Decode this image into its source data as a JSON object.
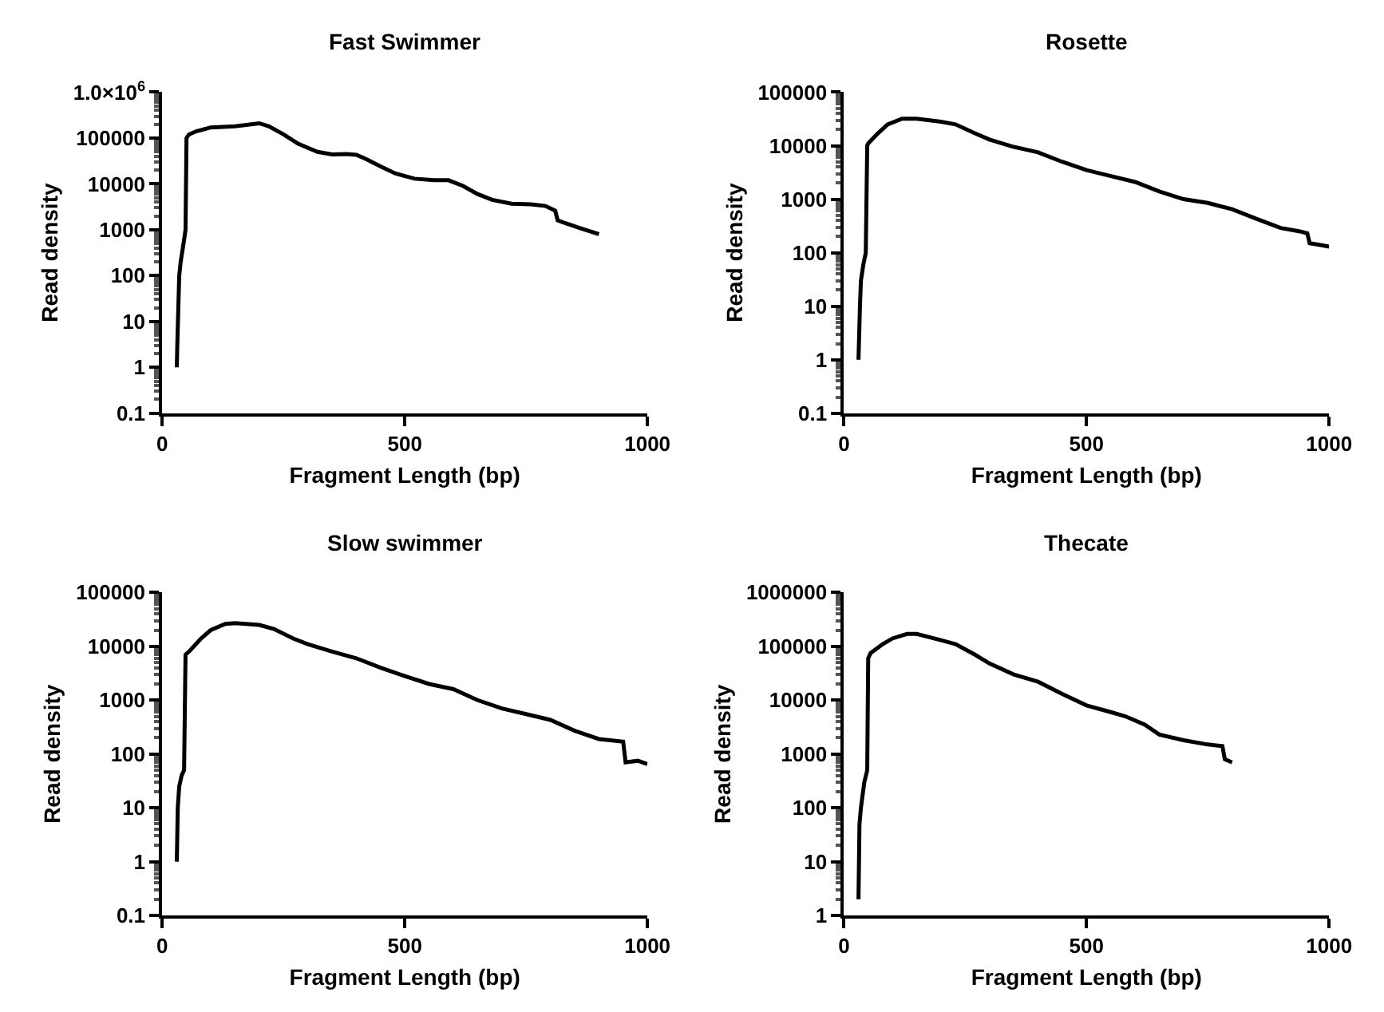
{
  "chart_data": [
    {
      "type": "line",
      "title": "Fast Swimmer",
      "xlabel": "Fragment Length (bp)",
      "ylabel": "Read density",
      "color": "#000000",
      "log": true,
      "xlim": [
        0,
        1000
      ],
      "xticks": [
        0,
        500,
        1000
      ],
      "ylim": [
        0.1,
        1000000
      ],
      "yticks": [
        0.1,
        1,
        10,
        100,
        1000,
        10000,
        100000,
        {
          "value": 1000000,
          "label": "1.0×10$^{6}$"
        }
      ],
      "x": [
        30,
        31,
        35,
        38,
        45,
        48,
        50,
        55,
        70,
        100,
        150,
        200,
        220,
        250,
        280,
        320,
        350,
        380,
        400,
        420,
        450,
        480,
        520,
        560,
        590,
        620,
        650,
        680,
        720,
        760,
        790,
        810,
        815,
        830,
        860,
        900
      ],
      "values": [
        1,
        3,
        100,
        200,
        600,
        1000,
        100000,
        120000,
        140000,
        170000,
        180000,
        210000,
        180000,
        120000,
        75000,
        50000,
        44000,
        45000,
        43000,
        35000,
        24000,
        17000,
        13000,
        12000,
        12000,
        9000,
        6000,
        4500,
        3700,
        3600,
        3300,
        2600,
        1600,
        1400,
        1100,
        800
      ]
    },
    {
      "type": "line",
      "title": "Rosette",
      "xlabel": "Fragment Length (bp)",
      "ylabel": "Read density",
      "color": "#000000",
      "log": true,
      "xlim": [
        0,
        1000
      ],
      "xticks": [
        0,
        500,
        1000
      ],
      "ylim": [
        0.1,
        100000
      ],
      "yticks": [
        0.1,
        1,
        10,
        100,
        1000,
        10000,
        100000
      ],
      "x": [
        30,
        33,
        35,
        40,
        45,
        48,
        50,
        70,
        90,
        120,
        150,
        200,
        230,
        270,
        300,
        350,
        400,
        450,
        500,
        550,
        600,
        650,
        700,
        750,
        800,
        850,
        900,
        940,
        955,
        960,
        980,
        1000
      ],
      "values": [
        1,
        10,
        30,
        60,
        100,
        10000,
        11000,
        17000,
        25000,
        32000,
        32000,
        28000,
        25000,
        17000,
        13000,
        9500,
        7500,
        5000,
        3500,
        2700,
        2100,
        1400,
        1000,
        850,
        650,
        430,
        290,
        250,
        230,
        150,
        140,
        130
      ]
    },
    {
      "type": "line",
      "title": "Slow swimmer",
      "xlabel": "Fragment Length (bp)",
      "ylabel": "Read density",
      "color": "#000000",
      "log": true,
      "xlim": [
        0,
        1000
      ],
      "xticks": [
        0,
        500,
        1000
      ],
      "ylim": [
        0.1,
        100000
      ],
      "yticks": [
        0.1,
        1,
        10,
        100,
        1000,
        10000,
        100000
      ],
      "x": [
        30,
        32,
        35,
        40,
        45,
        48,
        55,
        80,
        100,
        130,
        150,
        200,
        230,
        270,
        300,
        350,
        400,
        450,
        500,
        550,
        600,
        650,
        700,
        750,
        800,
        850,
        900,
        950,
        955,
        980,
        1000
      ],
      "values": [
        1,
        10,
        25,
        40,
        50,
        7000,
        8000,
        14000,
        20000,
        26000,
        27000,
        25000,
        21000,
        14000,
        11000,
        8000,
        6000,
        4000,
        2800,
        2000,
        1600,
        1000,
        700,
        550,
        430,
        270,
        190,
        170,
        70,
        75,
        65
      ]
    },
    {
      "type": "line",
      "title": "Thecate",
      "xlabel": "Fragment Length (bp)",
      "ylabel": "Read density",
      "color": "#000000",
      "log": true,
      "xlim": [
        0,
        1000
      ],
      "xticks": [
        0,
        500,
        1000
      ],
      "ylim": [
        1,
        1000000
      ],
      "yticks": [
        1,
        10,
        100,
        1000,
        10000,
        100000,
        1000000
      ],
      "x": [
        30,
        32,
        35,
        42,
        48,
        50,
        55,
        80,
        100,
        130,
        150,
        200,
        230,
        270,
        300,
        350,
        400,
        450,
        500,
        550,
        580,
        620,
        650,
        700,
        750,
        780,
        785,
        800
      ],
      "values": [
        2,
        50,
        100,
        300,
        500,
        60000,
        75000,
        110000,
        140000,
        170000,
        170000,
        130000,
        110000,
        70000,
        48000,
        30000,
        22000,
        13000,
        8000,
        6000,
        5000,
        3500,
        2300,
        1800,
        1500,
        1400,
        800,
        700
      ]
    }
  ]
}
